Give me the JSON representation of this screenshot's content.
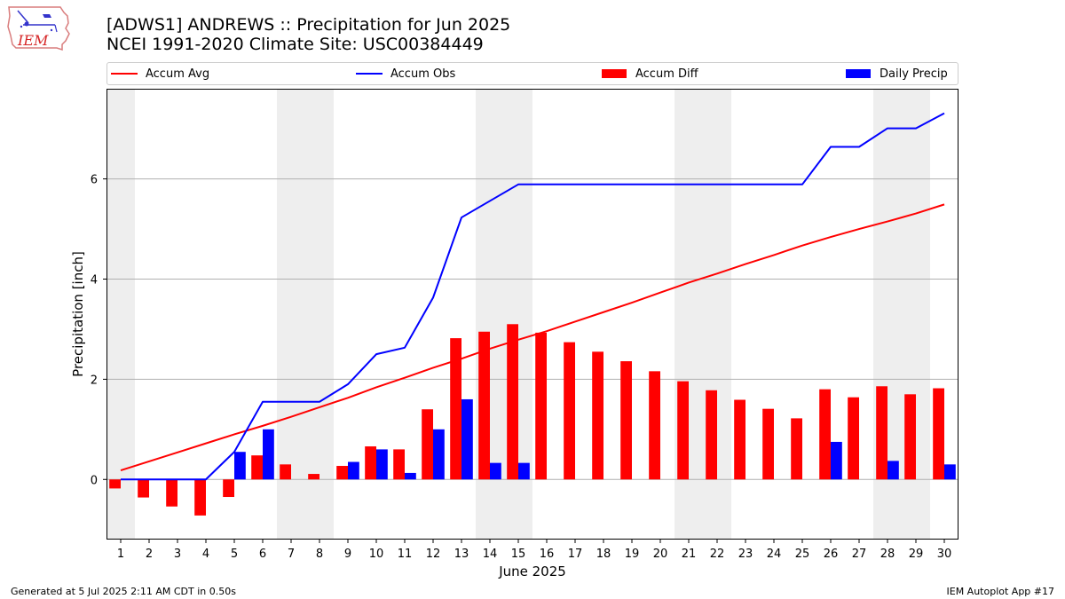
{
  "header": {
    "title": "[ADWS1] ANDREWS :: Precipitation for Jun 2025",
    "subtitle": "NCEI 1991-2020 Climate Site: USC00384449"
  },
  "logo": {
    "text": "IEM",
    "icon": "iem-iowa-logo-icon",
    "color": "#d62728"
  },
  "legend": [
    {
      "label": "Accum Avg",
      "kind": "line",
      "color": "#ff0000"
    },
    {
      "label": "Accum Obs",
      "kind": "line",
      "color": "#0000ff"
    },
    {
      "label": "Accum Diff",
      "kind": "bar",
      "color": "#ff0000"
    },
    {
      "label": "Daily Precip",
      "kind": "bar",
      "color": "#0000ff"
    }
  ],
  "footer": {
    "left": "Generated at 5 Jul 2025 2:11 AM CDT in 0.50s",
    "right": "IEM Autoplot App #17"
  },
  "chart_data": {
    "type": "bar",
    "xlabel": "June 2025",
    "ylabel": "Precipitation [inch]",
    "x": [
      1,
      2,
      3,
      4,
      5,
      6,
      7,
      8,
      9,
      10,
      11,
      12,
      13,
      14,
      15,
      16,
      17,
      18,
      19,
      20,
      21,
      22,
      23,
      24,
      25,
      26,
      27,
      28,
      29,
      30
    ],
    "xlim": [
      0.5,
      30.5
    ],
    "ylim": [
      -1.2,
      7.8
    ],
    "yticks": [
      0,
      2,
      4,
      6
    ],
    "grid": "horizontal",
    "legend_position": "top",
    "weekend_shading_days": [
      1,
      7,
      8,
      14,
      15,
      21,
      22,
      28,
      29
    ],
    "series": [
      {
        "name": "Accum Avg",
        "type": "line",
        "color": "#ff0000",
        "values": [
          0.18,
          0.36,
          0.54,
          0.72,
          0.9,
          1.07,
          1.25,
          1.44,
          1.63,
          1.84,
          2.03,
          2.23,
          2.41,
          2.61,
          2.79,
          2.96,
          3.15,
          3.34,
          3.53,
          3.73,
          3.93,
          4.11,
          4.3,
          4.48,
          4.67,
          4.84,
          5.0,
          5.15,
          5.31,
          5.49
        ]
      },
      {
        "name": "Accum Obs",
        "type": "line",
        "color": "#0000ff",
        "values": [
          0,
          0,
          0,
          0,
          0.55,
          1.55,
          1.55,
          1.55,
          1.9,
          2.5,
          2.63,
          3.63,
          5.23,
          5.56,
          5.89,
          5.89,
          5.89,
          5.89,
          5.89,
          5.89,
          5.89,
          5.89,
          5.89,
          5.89,
          5.89,
          6.64,
          6.64,
          7.01,
          7.01,
          7.31
        ]
      },
      {
        "name": "Accum Diff",
        "type": "bar",
        "color": "#ff0000",
        "values": [
          -0.18,
          -0.36,
          -0.54,
          -0.72,
          -0.35,
          0.48,
          0.3,
          0.11,
          0.27,
          0.66,
          0.6,
          1.4,
          2.82,
          2.95,
          3.1,
          2.93,
          2.74,
          2.55,
          2.36,
          2.16,
          1.96,
          1.78,
          1.59,
          1.41,
          1.22,
          1.8,
          1.64,
          1.86,
          1.7,
          1.82
        ]
      },
      {
        "name": "Daily Precip",
        "type": "bar",
        "color": "#0000ff",
        "values": [
          0,
          0,
          0,
          0,
          0.55,
          1.0,
          0,
          0,
          0.35,
          0.6,
          0.13,
          1.0,
          1.6,
          0.33,
          0.33,
          0,
          0,
          0,
          0,
          0,
          0,
          0,
          0,
          0,
          0,
          0.75,
          0,
          0.37,
          0,
          0.3
        ]
      }
    ]
  }
}
